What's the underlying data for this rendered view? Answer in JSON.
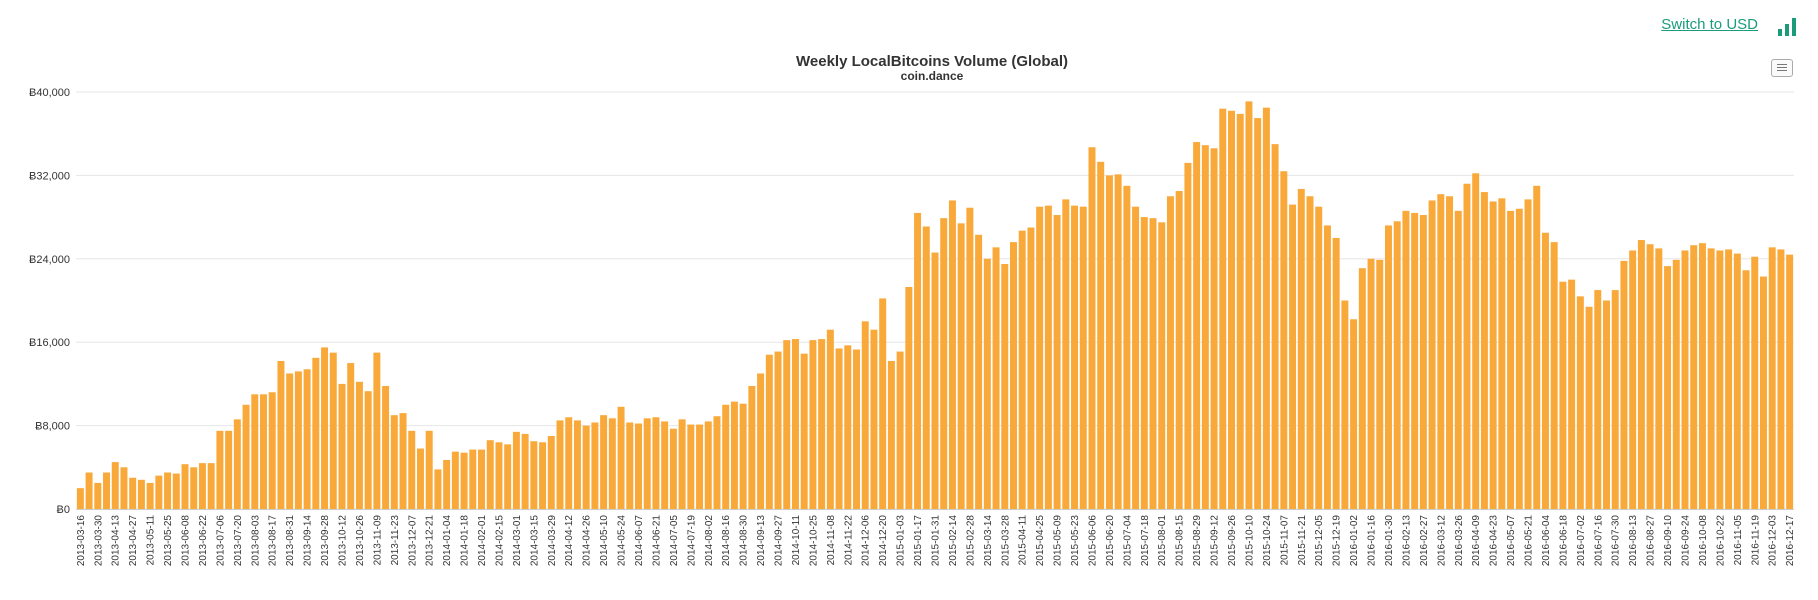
{
  "header": {
    "switch_label": "Switch to USD"
  },
  "icons": {
    "switch": "bar-chart-icon",
    "menu": "hamburger-menu-icon"
  },
  "colors": {
    "bar": "#f9a93a",
    "link": "#1a9c7a",
    "grid": "#e6e6e6"
  },
  "chart_data": {
    "type": "bar",
    "title": "Weekly LocalBitcoins Volume (Global)",
    "subtitle": "coin.dance",
    "xlabel": "",
    "ylabel": "",
    "ylim": [
      0,
      40000
    ],
    "yticks": [
      "Ƀ0",
      "Ƀ8,000",
      "Ƀ16,000",
      "Ƀ24,000",
      "Ƀ32,000",
      "Ƀ40,000"
    ],
    "grid": true,
    "start_week": "2013-03-16",
    "week_days": 7,
    "xtick_labels": [
      "2013-03-16",
      "2013-03-30",
      "2013-04-13",
      "2013-04-27",
      "2013-05-11",
      "2013-05-25",
      "2013-06-08",
      "2013-06-22",
      "2013-07-06",
      "2013-07-20",
      "2013-08-03",
      "2013-08-17",
      "2013-08-31",
      "2013-09-14",
      "2013-09-28",
      "2013-10-12",
      "2013-10-26",
      "2013-11-09",
      "2013-11-23",
      "2013-12-07",
      "2013-12-21",
      "2014-01-04",
      "2014-01-18",
      "2014-02-01",
      "2014-02-15",
      "2014-03-01",
      "2014-03-15",
      "2014-03-29",
      "2014-04-12",
      "2014-04-26",
      "2014-05-10",
      "2014-05-24",
      "2014-06-07",
      "2014-06-21",
      "2014-07-05",
      "2014-07-19",
      "2014-08-02",
      "2014-08-16",
      "2014-08-30",
      "2014-09-13",
      "2014-09-27",
      "2014-10-11",
      "2014-10-25",
      "2014-11-08",
      "2014-11-22",
      "2014-12-06",
      "2014-12-20",
      "2015-01-03",
      "2015-01-17",
      "2015-01-31",
      "2015-02-14",
      "2015-02-28",
      "2015-03-14",
      "2015-03-28",
      "2015-04-11",
      "2015-04-25",
      "2015-05-09",
      "2015-05-23",
      "2015-06-06",
      "2015-06-20",
      "2015-07-04",
      "2015-07-18",
      "2015-08-01",
      "2015-08-15",
      "2015-08-29",
      "2015-09-12",
      "2015-09-26",
      "2015-10-10",
      "2015-10-24",
      "2015-11-07",
      "2015-11-21",
      "2015-12-05",
      "2015-12-19",
      "2016-01-02",
      "2016-01-16",
      "2016-01-30",
      "2016-02-13",
      "2016-02-27",
      "2016-03-12",
      "2016-03-26",
      "2016-04-09",
      "2016-04-23",
      "2016-05-07",
      "2016-05-21",
      "2016-06-04",
      "2016-06-18",
      "2016-07-02",
      "2016-07-16",
      "2016-07-30",
      "2016-08-13",
      "2016-08-27",
      "2016-09-10",
      "2016-09-24",
      "2016-10-08",
      "2016-10-22",
      "2016-11-05",
      "2016-11-19",
      "2016-12-03",
      "2016-12-17"
    ],
    "values": [
      2000,
      3500,
      2500,
      3500,
      4500,
      4000,
      3000,
      2800,
      2500,
      3200,
      3500,
      3400,
      4300,
      4000,
      4400,
      4400,
      7500,
      7500,
      8600,
      10000,
      11000,
      11000,
      11200,
      14200,
      13000,
      13200,
      13400,
      14500,
      15500,
      15000,
      12000,
      14000,
      12200,
      11300,
      15000,
      11800,
      9000,
      9200,
      7500,
      5800,
      7500,
      3800,
      4700,
      5500,
      5400,
      5700,
      5700,
      6600,
      6400,
      6200,
      7400,
      7200,
      6500,
      6400,
      7000,
      8500,
      8800,
      8500,
      8000,
      8300,
      9000,
      8700,
      9800,
      8300,
      8200,
      8700,
      8800,
      8400,
      7700,
      8600,
      8100,
      8100,
      8400,
      8900,
      10000,
      10300,
      10100,
      11800,
      13000,
      14800,
      15100,
      16200,
      16300,
      14900,
      16200,
      16300,
      17200,
      15400,
      15700,
      15300,
      18000,
      17200,
      20200,
      14200,
      15100,
      21300,
      28400,
      27100,
      24600,
      27900,
      29600,
      27400,
      28900,
      26300,
      24000,
      25100,
      23500,
      25600,
      26700,
      27000,
      29000,
      29100,
      28200,
      29700,
      29100,
      29000,
      34700,
      33300,
      32000,
      32100,
      31000,
      29000,
      28000,
      27900,
      27500,
      30000,
      30500,
      33200,
      35200,
      34900,
      34600,
      38400,
      38200,
      37900,
      39100,
      37500,
      38500,
      35000,
      32400,
      29200,
      30700,
      30000,
      29000,
      27200,
      26000,
      20000,
      18200,
      23100,
      24000,
      23900,
      27200,
      27600,
      28600,
      28400,
      28200,
      29600,
      30200,
      30000,
      28600,
      31200,
      32200,
      30400,
      29500,
      29800,
      28600,
      28800,
      29700,
      31000,
      26500,
      25600,
      21800,
      22000,
      20400,
      19400,
      21000,
      20000,
      21000,
      23800,
      24800,
      25800,
      25400,
      25000,
      23300,
      23900,
      24800,
      25300,
      25500,
      25000,
      24800,
      24900,
      24500,
      22900,
      24200,
      22300,
      25100,
      24900,
      24400
    ]
  }
}
